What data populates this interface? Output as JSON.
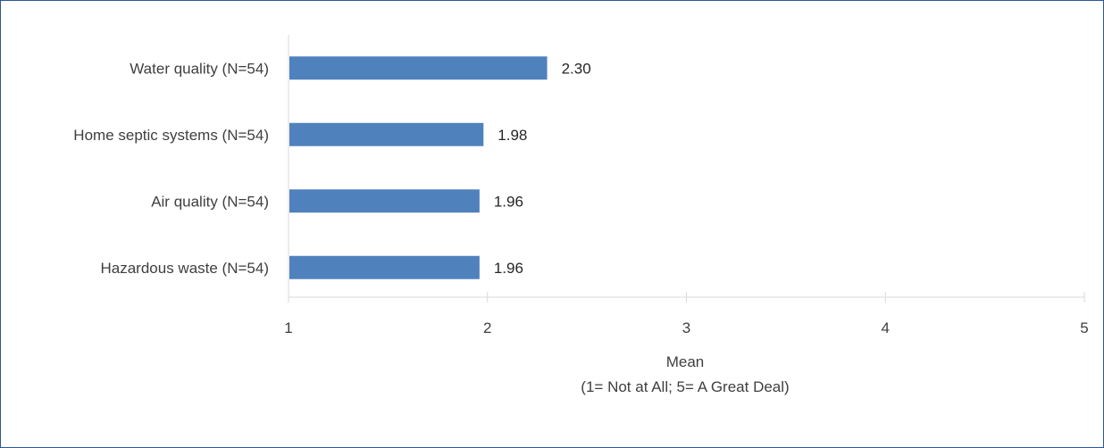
{
  "chart_data": {
    "type": "bar",
    "orientation": "horizontal",
    "categories": [
      "Water quality (N=54)",
      "Home septic systems (N=54)",
      "Air quality (N=54)",
      "Hazardous waste (N=54)"
    ],
    "values": [
      2.3,
      1.98,
      1.96,
      1.96
    ],
    "value_labels": [
      "2.30",
      "1.98",
      "1.96",
      "1.96"
    ],
    "xlim": [
      1,
      5
    ],
    "xticks": [
      "1",
      "2",
      "3",
      "4",
      "5"
    ],
    "xlabel": "Mean",
    "xlabel_sub": "(1= Not at All; 5= A Great Deal)",
    "bar_color": "#4f81bd",
    "grid": false,
    "legend": "none"
  }
}
